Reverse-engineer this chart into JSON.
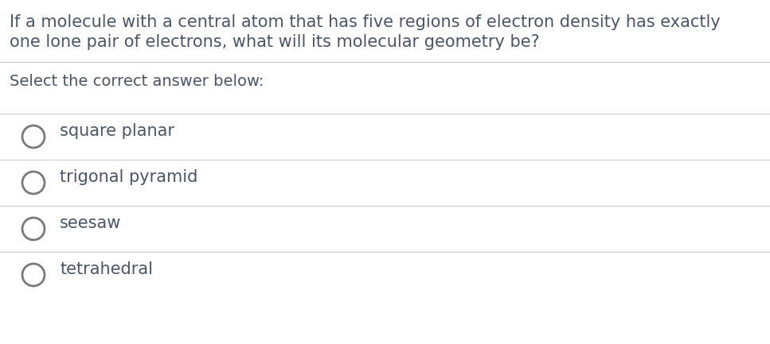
{
  "background_color": "#ffffff",
  "question_text_line1": "If a molecule with a central atom that has five regions of electron density has exactly",
  "question_text_line2": "one lone pair of electrons, what will its molecular geometry be?",
  "question_color": "#4a5568",
  "select_text": "Select the correct answer below:",
  "select_color": "#4a5568",
  "options": [
    "square planar",
    "trigonal pyramid",
    "seesaw",
    "tetrahedral"
  ],
  "option_color": "#4a5568",
  "divider_color": "#cccccc",
  "circle_edge_color": "#7a7a7a",
  "font_size_question": 15.0,
  "font_size_select": 14.0,
  "font_size_option": 15.0
}
